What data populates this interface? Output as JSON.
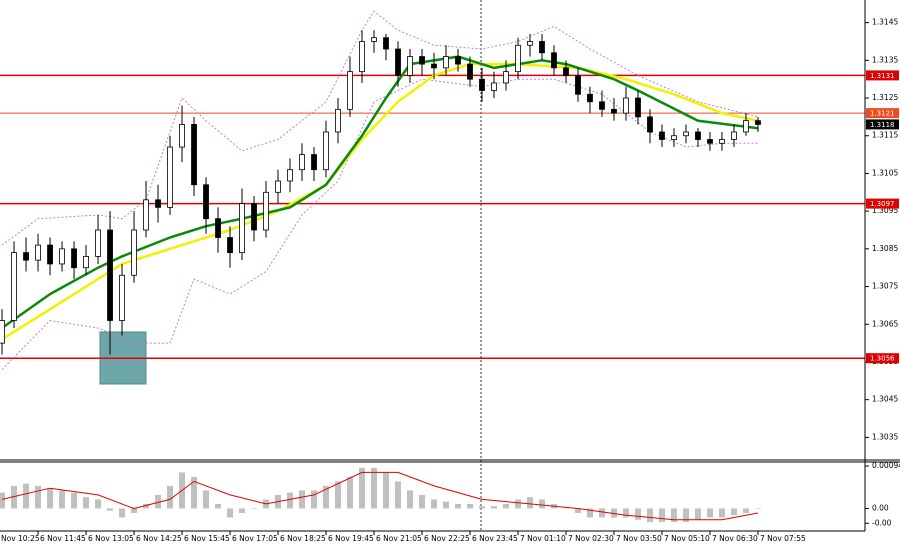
{
  "chart_data": [
    {
      "type": "candlestick",
      "xlim": [
        -0.17,
        71.92
      ],
      "ylim": [
        1.3029,
        1.3151
      ],
      "yticks": [
        1.3145,
        1.3135,
        1.3125,
        1.3115,
        1.3105,
        1.3095,
        1.3085,
        1.3075,
        1.3065,
        1.3055,
        1.3045,
        1.3035
      ],
      "xticks": [
        {
          "value": -1,
          "label": "Nov 10:25"
        },
        {
          "value": 3,
          "label": "6 Nov 11:45"
        },
        {
          "value": 7,
          "label": "6 Nov 13:05"
        },
        {
          "value": 11,
          "label": "6 Nov 14:25"
        },
        {
          "value": 15,
          "label": "6 Nov 15:45"
        },
        {
          "value": 19,
          "label": "6 Nov 17:05"
        },
        {
          "value": 23,
          "label": "6 Nov 18:25"
        },
        {
          "value": 27,
          "label": "6 Nov 19:45"
        },
        {
          "value": 31,
          "label": "6 Nov 21:05"
        },
        {
          "value": 35,
          "label": "6 Nov 22:25"
        },
        {
          "value": 39,
          "label": "6 Nov 23:45"
        },
        {
          "value": 43,
          "label": "7 Nov 01:10"
        },
        {
          "value": 47,
          "label": "7 Nov 02:30"
        },
        {
          "value": 51,
          "label": "7 Nov 03:50"
        },
        {
          "value": 55,
          "label": "7 Nov 05:10"
        },
        {
          "value": 59,
          "label": "7 Nov 06:30"
        },
        {
          "value": 63,
          "label": "7 Nov 07:55"
        }
      ],
      "color": "#000000",
      "open": [
        1.306,
        1.3066,
        1.3084,
        1.3082,
        1.3086,
        1.3081,
        1.3085,
        1.308,
        1.3083,
        1.309,
        1.3066,
        1.3078,
        1.309,
        1.3098,
        1.3096,
        1.3112,
        1.3118,
        1.3102,
        1.3093,
        1.3088,
        1.3084,
        1.3097,
        1.309,
        1.31,
        1.3103,
        1.3106,
        1.311,
        1.3106,
        1.3116,
        1.3122,
        1.3132,
        1.314,
        1.3141,
        1.3138,
        1.3131,
        1.3136,
        1.3134,
        1.3133,
        1.3136,
        1.3134,
        1.313,
        1.3127,
        1.3129,
        1.3132,
        1.3139,
        1.314,
        1.3137,
        1.3133,
        1.3131,
        1.3126,
        1.3124,
        1.3122,
        1.3121,
        1.3125,
        1.312,
        1.3116,
        1.3114,
        1.3115,
        1.3116,
        1.3114,
        1.3113,
        1.3114,
        1.3116,
        1.3119
      ],
      "high": [
        1.3069,
        1.3087,
        1.3088,
        1.3089,
        1.3088,
        1.3087,
        1.3087,
        1.3086,
        1.3094,
        1.3095,
        1.3081,
        1.3095,
        1.3103,
        1.3102,
        1.3115,
        1.3123,
        1.312,
        1.3104,
        1.3096,
        1.3091,
        1.3101,
        1.3099,
        1.3103,
        1.3106,
        1.3109,
        1.3113,
        1.3112,
        1.3119,
        1.3125,
        1.3136,
        1.3143,
        1.3143,
        1.3142,
        1.314,
        1.3138,
        1.3138,
        1.3137,
        1.3139,
        1.3138,
        1.3136,
        1.3133,
        1.3132,
        1.3135,
        1.3141,
        1.3142,
        1.3142,
        1.3139,
        1.3135,
        1.3133,
        1.3128,
        1.3127,
        1.3125,
        1.3128,
        1.3127,
        1.3122,
        1.3118,
        1.3117,
        1.3118,
        1.3117,
        1.3116,
        1.3116,
        1.3118,
        1.3121,
        1.312
      ],
      "low": [
        1.3057,
        1.3064,
        1.3079,
        1.3079,
        1.3078,
        1.3079,
        1.3077,
        1.3078,
        1.3081,
        1.3057,
        1.3062,
        1.3076,
        1.3088,
        1.3092,
        1.3094,
        1.3108,
        1.3099,
        1.3089,
        1.3084,
        1.308,
        1.3082,
        1.3087,
        1.3088,
        1.3097,
        1.31,
        1.3103,
        1.3103,
        1.3104,
        1.3113,
        1.312,
        1.3129,
        1.3137,
        1.3135,
        1.3128,
        1.3129,
        1.3131,
        1.313,
        1.3131,
        1.3132,
        1.3128,
        1.3124,
        1.3125,
        1.3127,
        1.313,
        1.3136,
        1.3135,
        1.3131,
        1.3129,
        1.3124,
        1.3121,
        1.312,
        1.3119,
        1.3119,
        1.3118,
        1.3113,
        1.3112,
        1.3112,
        1.3113,
        1.3112,
        1.3111,
        1.3111,
        1.3112,
        1.3115,
        1.3116
      ],
      "close": [
        1.3066,
        1.3084,
        1.3082,
        1.3086,
        1.3081,
        1.3085,
        1.308,
        1.3083,
        1.309,
        1.3066,
        1.3078,
        1.309,
        1.3098,
        1.3096,
        1.3112,
        1.3118,
        1.3102,
        1.3093,
        1.3088,
        1.3084,
        1.3097,
        1.309,
        1.31,
        1.3103,
        1.3106,
        1.311,
        1.3106,
        1.3116,
        1.3122,
        1.3132,
        1.314,
        1.3141,
        1.3138,
        1.3131,
        1.3136,
        1.3134,
        1.3133,
        1.3136,
        1.3134,
        1.313,
        1.3127,
        1.3129,
        1.3132,
        1.3139,
        1.314,
        1.3137,
        1.3133,
        1.3131,
        1.3126,
        1.3124,
        1.3122,
        1.3121,
        1.3125,
        1.312,
        1.3116,
        1.3114,
        1.3115,
        1.3116,
        1.3114,
        1.3113,
        1.3114,
        1.3116,
        1.3119,
        1.3118
      ],
      "overlays": [
        {
          "color": "#c27be0",
          "dashed": true,
          "width": 1,
          "x": [
            0,
            3,
            8,
            10,
            12,
            15,
            17,
            20,
            23,
            27,
            30,
            31,
            33,
            36,
            40,
            43,
            46,
            49,
            53,
            58,
            63
          ],
          "values": [
            1.3086,
            1.3093,
            1.3094,
            1.3093,
            1.3098,
            1.3125,
            1.3119,
            1.3111,
            1.3114,
            1.3124,
            1.3143,
            1.3148,
            1.3143,
            1.3139,
            1.3138,
            1.314,
            1.3144,
            1.3138,
            1.3131,
            1.3124,
            1.312
          ]
        },
        {
          "color": "#c27be0",
          "dashed": true,
          "width": 1,
          "x": [
            0,
            4,
            8,
            11,
            14,
            16,
            19,
            22,
            25,
            28,
            31,
            35,
            40,
            43,
            46,
            50,
            54,
            57,
            60,
            63
          ],
          "values": [
            1.3053,
            1.3066,
            1.3064,
            1.306,
            1.306,
            1.3077,
            1.3073,
            1.3079,
            1.3094,
            1.3103,
            1.3124,
            1.313,
            1.3128,
            1.313,
            1.313,
            1.3126,
            1.3116,
            1.3112,
            1.3113,
            1.3113
          ]
        },
        {
          "color": "#f2f200",
          "dashed": false,
          "width": 2.5,
          "x": [
            0,
            4,
            10,
            15,
            19,
            23,
            27,
            30,
            33,
            36,
            39,
            43,
            48,
            52,
            56,
            60,
            63
          ],
          "values": [
            1.3061,
            1.3069,
            1.3081,
            1.3086,
            1.309,
            1.3095,
            1.3102,
            1.3114,
            1.3124,
            1.3131,
            1.3134,
            1.3134,
            1.3133,
            1.313,
            1.3126,
            1.3121,
            1.3119
          ]
        },
        {
          "color": "#0a8a0a",
          "dashed": false,
          "width": 2.5,
          "x": [
            0,
            4,
            8,
            10,
            14,
            17,
            20,
            24,
            27,
            30,
            32,
            34,
            38,
            41,
            45,
            47,
            51,
            53,
            58,
            63
          ],
          "values": [
            1.3064,
            1.3073,
            1.308,
            1.3083,
            1.3088,
            1.3091,
            1.3093,
            1.3096,
            1.3102,
            1.3115,
            1.3125,
            1.3134,
            1.3136,
            1.3133,
            1.3135,
            1.3134,
            1.313,
            1.3127,
            1.3119,
            1.3117
          ]
        }
      ],
      "levels": [
        {
          "value": 1.3131,
          "color": "#e00000",
          "line": true
        },
        {
          "value": 1.3121,
          "color": "#f04a20",
          "line": true
        },
        {
          "value": 1.3118,
          "color": "#000000",
          "line": false
        },
        {
          "value": 1.3097,
          "color": "#e00000",
          "line": true
        },
        {
          "value": 1.3056,
          "color": "#e00000",
          "line": true
        }
      ]
    },
    {
      "type": "macd",
      "xlim": [
        -0.17,
        71.92
      ],
      "ylim": [
        -0.0005,
        0.00103
      ],
      "yticks": [
        0.00094,
        {
          "value": 0,
          "label": "0.00"
        },
        {
          "value": -0.00033,
          "label": "-0.00"
        }
      ],
      "color": "#c0c0c0",
      "values": [
        0.00035,
        0.0005,
        0.00055,
        0.0005,
        0.00045,
        0.0004,
        0.00035,
        0.00025,
        0.0002,
        -5e-05,
        -0.0002,
        -0.0001,
        0.0001,
        0.0003,
        0.0005,
        0.0008,
        0.0007,
        0.0004,
        0.0001,
        -0.0002,
        -0.0001,
        0,
        0.0002,
        0.0003,
        0.00035,
        0.0004,
        0.0004,
        0.0005,
        0.0006,
        0.0007,
        0.0009,
        0.0009,
        0.0008,
        0.0006,
        0.0004,
        0.0003,
        0.0002,
        0.00015,
        0.0001,
        0.0001,
        5e-05,
        5e-05,
        0.0001,
        0.0002,
        0.00025,
        0.0002,
        0.0001,
        0,
        -0.0001,
        -0.0002,
        -0.0002,
        -0.0002,
        -0.0002,
        -0.00025,
        -0.0003,
        -0.0003,
        -0.0003,
        -0.0003,
        -0.00025,
        -0.0002,
        -0.0002,
        -0.00015,
        -0.0001,
        0
      ],
      "signal": {
        "color": "#e00000",
        "x": [
          0,
          4,
          8,
          11,
          14,
          16,
          19,
          22,
          26,
          30,
          33,
          36,
          40,
          44,
          48,
          52,
          56,
          60,
          63
        ],
        "values": [
          0.0002,
          0.00045,
          0.0003,
          0,
          0.0002,
          0.0006,
          0.0003,
          0.0001,
          0.0003,
          0.0008,
          0.0008,
          0.0005,
          0.0002,
          0.0001,
          0,
          -0.00015,
          -0.00025,
          -0.00025,
          -0.0001
        ]
      }
    }
  ]
}
